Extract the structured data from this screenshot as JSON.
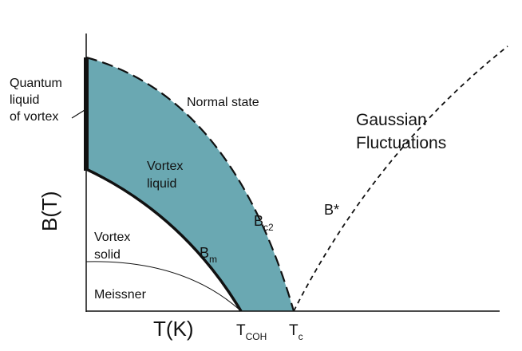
{
  "diagram": {
    "y_axis_label": "B(T)",
    "x_axis_label": "T(K)",
    "regions": {
      "normal_state": "Normal state",
      "gaussian_line1": "Gaussian",
      "gaussian_line2": "Fluctuations",
      "vortex_liquid_line1": "Vortex",
      "vortex_liquid_line2": "liquid",
      "vortex_solid_line1": "Vortex",
      "vortex_solid_line2": "solid",
      "meissner": "Meissner",
      "quantum_line1": "Quantum",
      "quantum_line2": "liquid",
      "quantum_line3": "of vortex"
    },
    "curves": {
      "bc2_main": "B",
      "bc2_sub": "c2",
      "bm_main": "B",
      "bm_sub": "m",
      "bstar": "B*"
    },
    "x_ticks": {
      "tcoh_main": "T",
      "tcoh_sub": "COH",
      "tc_main": "T",
      "tc_sub": "c"
    },
    "colors": {
      "vortex_liquid_fill": "#6aa8b2",
      "axis": "#111111"
    }
  }
}
